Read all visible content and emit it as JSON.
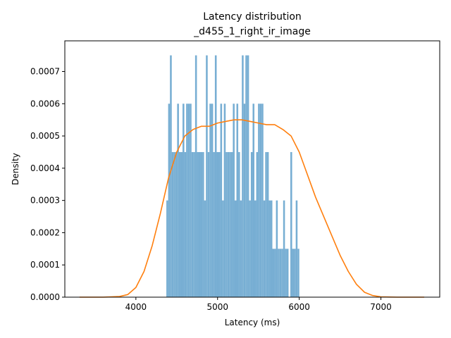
{
  "chart_data": {
    "type": "bar",
    "title_line1": "Latency distribution",
    "title_line2": "_d455_1_right_ir_image",
    "xlabel": "Latency (ms)",
    "ylabel": "Density",
    "xlim": [
      3130,
      7720
    ],
    "ylim": [
      0,
      0.000795
    ],
    "xticks": [
      4000,
      5000,
      6000,
      7000
    ],
    "yticks": [
      0.0,
      0.0001,
      0.0002,
      0.0003,
      0.0004,
      0.0005,
      0.0006,
      0.0007
    ],
    "ytick_labels": [
      "0.0000",
      "0.0001",
      "0.0002",
      "0.0003",
      "0.0004",
      "0.0005",
      "0.0006",
      "0.0007"
    ],
    "grid": false,
    "histogram": {
      "color": "#77aed3",
      "bin_start": 4373,
      "bin_width": 22,
      "densities": [
        0.0003,
        0.0006,
        0.00075,
        0.00045,
        0.00045,
        0.00045,
        0.0006,
        0.00045,
        0.00045,
        0.0006,
        0.00045,
        0.0006,
        0.0006,
        0.0006,
        0.00045,
        0.00045,
        0.00075,
        0.00045,
        0.00045,
        0.00045,
        0.00045,
        0.0003,
        0.00075,
        0.00045,
        0.0006,
        0.0006,
        0.00045,
        0.00075,
        0.00045,
        0.00045,
        0.0006,
        0.0003,
        0.0006,
        0.00045,
        0.00045,
        0.00045,
        0.00045,
        0.0006,
        0.0003,
        0.0006,
        0.00045,
        0.0003,
        0.00075,
        0.0006,
        0.00075,
        0.00075,
        0.0003,
        0.00045,
        0.0006,
        0.0003,
        0.00045,
        0.0006,
        0.0006,
        0.0006,
        0.0003,
        0.00045,
        0.00045,
        0.0003,
        0.0003,
        0.00015,
        0.00015,
        0.0003,
        0.00015,
        0.00015,
        0.00015,
        0.0003,
        0.00015,
        0.00015,
        0.0,
        0.00045,
        0.00015,
        0.00015,
        0.0003,
        0.00015
      ]
    },
    "kde": {
      "color": "#ff7f0e",
      "x": [
        3310,
        3600,
        3800,
        3900,
        4000,
        4100,
        4200,
        4300,
        4400,
        4500,
        4600,
        4700,
        4800,
        4900,
        5000,
        5100,
        5200,
        5300,
        5400,
        5500,
        5600,
        5700,
        5800,
        5900,
        6000,
        6100,
        6200,
        6300,
        6400,
        6500,
        6600,
        6700,
        6800,
        6900,
        7000,
        7200,
        7530
      ],
      "y": [
        0.0,
        0.0,
        2e-06,
        8e-06,
        3e-05,
        8e-05,
        0.00016,
        0.00026,
        0.00037,
        0.00045,
        0.0005,
        0.00052,
        0.00053,
        0.00053,
        0.00054,
        0.000545,
        0.00055,
        0.00055,
        0.000545,
        0.00054,
        0.000535,
        0.000535,
        0.00052,
        0.0005,
        0.00045,
        0.00038,
        0.00031,
        0.00025,
        0.00019,
        0.00013,
        8e-05,
        4e-05,
        1.5e-05,
        5e-06,
        1e-06,
        0.0,
        0.0
      ]
    }
  }
}
